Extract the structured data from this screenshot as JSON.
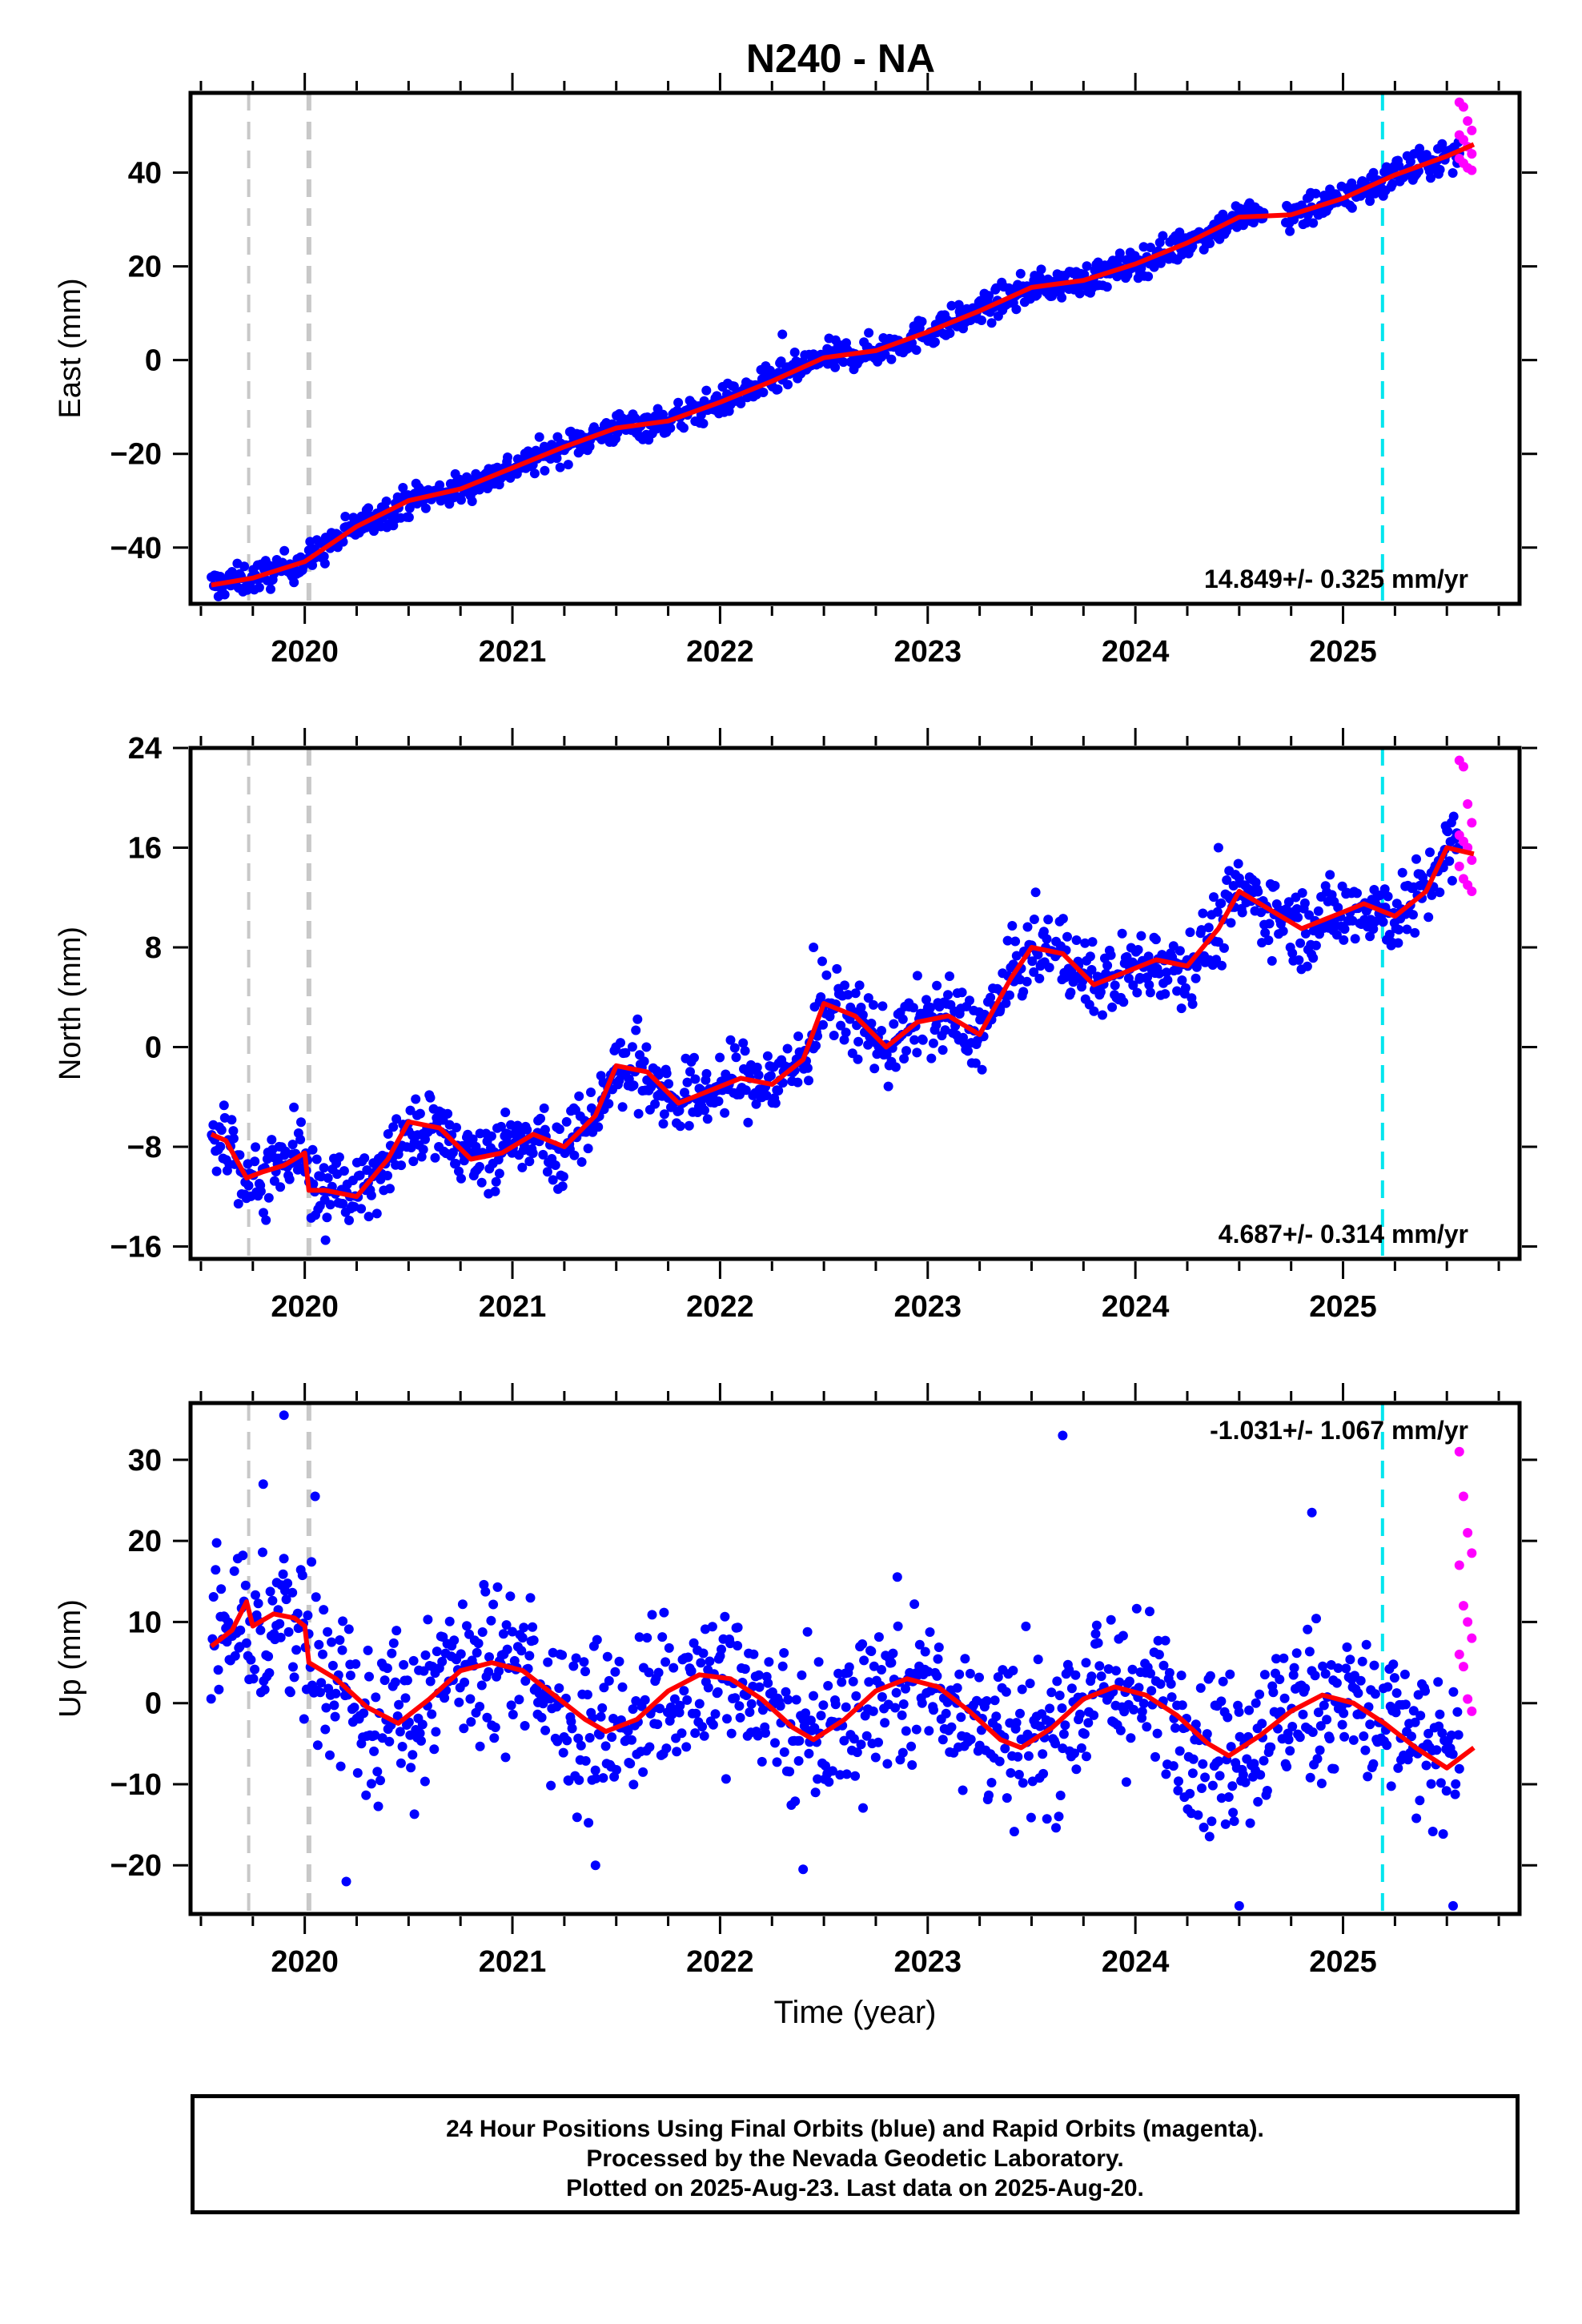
{
  "title": "N240 - NA",
  "colors": {
    "final_points": "#0000ff",
    "rapid_points": "#ff00ff",
    "model_line": "#ff0000",
    "equipment_change": "#c8c8c8",
    "event_line": "#00e5ee"
  },
  "chart_data": [
    {
      "type": "scatter",
      "ylabel": "East (mm)",
      "xlim": [
        2019.45,
        2025.85
      ],
      "ylim": [
        -52,
        57
      ],
      "yticks": [
        -40,
        -20,
        0,
        20,
        40
      ],
      "xticks": [
        2020,
        2021,
        2022,
        2023,
        2024,
        2025
      ],
      "rate_label": "14.849+/- 0.325 mm/yr",
      "rate_position": "bottom-right",
      "vertical_lines": [
        {
          "x": 2019.73,
          "kind": "equipment_change"
        },
        {
          "x": 2020.02,
          "kind": "equipment_change"
        },
        {
          "x": 2025.19,
          "kind": "event_line"
        }
      ],
      "model_curve": {
        "x": [
          2019.55,
          2019.75,
          2020.0,
          2020.25,
          2020.5,
          2020.75,
          2021.0,
          2021.25,
          2021.5,
          2021.75,
          2022.0,
          2022.25,
          2022.5,
          2022.75,
          2023.0,
          2023.25,
          2023.5,
          2023.75,
          2024.0,
          2024.25,
          2024.5,
          2024.75,
          2025.0,
          2025.25,
          2025.5,
          2025.63
        ],
        "y": [
          -48.0,
          -46.5,
          -43.0,
          -35.5,
          -30.0,
          -27.5,
          -23.0,
          -18.5,
          -14.5,
          -13.0,
          -9.0,
          -4.5,
          0.5,
          2.0,
          6.0,
          10.5,
          15.5,
          17.0,
          20.5,
          25.0,
          30.5,
          31.0,
          34.5,
          39.5,
          43.5,
          46.0
        ]
      },
      "final_series": {
        "name": "Final Orbits (blue)",
        "x_start": 2019.55,
        "x_end": 2025.56,
        "scatter_sd_mm": 1.6,
        "outliers": [
          {
            "x": 2024.55,
            "y": 33.5
          },
          {
            "x": 2022.3,
            "y": 5.5
          }
        ]
      },
      "rapid_series": {
        "name": "Rapid Orbits (magenta)",
        "x_start": 2025.56,
        "x_end": 2025.62,
        "points": [
          55.0,
          54.0,
          51.0,
          49.0,
          48.0,
          47.0,
          45.5,
          44.0,
          43.0,
          42.0,
          41.0,
          40.5
        ]
      }
    },
    {
      "type": "scatter",
      "ylabel": "North (mm)",
      "xlim": [
        2019.45,
        2025.85
      ],
      "ylim": [
        -17,
        24
      ],
      "yticks": [
        -16,
        -8,
        0,
        8,
        16,
        24
      ],
      "xticks": [
        2020,
        2021,
        2022,
        2023,
        2024,
        2025
      ],
      "rate_label": "4.687+/- 0.314 mm/yr",
      "rate_position": "bottom-right",
      "vertical_lines": [
        {
          "x": 2019.73,
          "kind": "equipment_change"
        },
        {
          "x": 2020.02,
          "kind": "equipment_change"
        },
        {
          "x": 2025.19,
          "kind": "event_line"
        }
      ],
      "model_curve": {
        "x": [
          2019.55,
          2019.62,
          2019.72,
          2019.8,
          2019.9,
          2020.0,
          2020.02,
          2020.1,
          2020.25,
          2020.4,
          2020.5,
          2020.65,
          2020.8,
          2020.95,
          2021.1,
          2021.25,
          2021.4,
          2021.5,
          2021.65,
          2021.8,
          2021.95,
          2022.1,
          2022.25,
          2022.4,
          2022.5,
          2022.65,
          2022.8,
          2022.95,
          2023.1,
          2023.25,
          2023.4,
          2023.5,
          2023.65,
          2023.8,
          2023.95,
          2024.1,
          2024.25,
          2024.4,
          2024.5,
          2024.65,
          2024.8,
          2024.95,
          2025.1,
          2025.25,
          2025.4,
          2025.5,
          2025.63
        ],
        "y": [
          -7.0,
          -7.5,
          -10.5,
          -10.0,
          -9.5,
          -8.5,
          -11.5,
          -11.5,
          -12.0,
          -9.0,
          -6.0,
          -6.5,
          -9.0,
          -8.5,
          -7.0,
          -8.0,
          -5.5,
          -1.5,
          -2.0,
          -4.5,
          -3.5,
          -2.5,
          -3.0,
          -1.0,
          3.5,
          2.5,
          0.0,
          2.0,
          2.5,
          1.0,
          5.5,
          8.0,
          7.5,
          5.0,
          6.0,
          7.0,
          6.5,
          9.5,
          12.5,
          11.0,
          9.5,
          10.5,
          11.5,
          10.5,
          12.5,
          16.0,
          15.5
        ]
      },
      "final_series": {
        "name": "Final Orbits (blue)",
        "x_start": 2019.55,
        "x_end": 2025.56,
        "scatter_sd_mm": 1.5,
        "outliers": [
          {
            "x": 2020.1,
            "y": -15.5
          },
          {
            "x": 2024.4,
            "y": 16.0
          },
          {
            "x": 2022.45,
            "y": 8.0
          }
        ]
      },
      "rapid_series": {
        "name": "Rapid Orbits (magenta)",
        "x_start": 2025.56,
        "x_end": 2025.62,
        "points": [
          23.0,
          22.5,
          19.5,
          18.0,
          17.0,
          16.5,
          16.0,
          15.0,
          14.5,
          13.5,
          13.0,
          12.5
        ]
      }
    },
    {
      "type": "scatter",
      "ylabel": "Up (mm)",
      "xlabel": "Time (year)",
      "xlim": [
        2019.45,
        2025.85
      ],
      "ylim": [
        -26,
        37
      ],
      "yticks": [
        -20,
        -10,
        0,
        10,
        20,
        30
      ],
      "xticks": [
        2020,
        2021,
        2022,
        2023,
        2024,
        2025
      ],
      "rate_label": "-1.031+/- 1.067 mm/yr",
      "rate_position": "top-right",
      "vertical_lines": [
        {
          "x": 2019.73,
          "kind": "equipment_change"
        },
        {
          "x": 2020.02,
          "kind": "equipment_change"
        },
        {
          "x": 2025.19,
          "kind": "event_line"
        }
      ],
      "model_curve": {
        "x": [
          2019.55,
          2019.65,
          2019.72,
          2019.75,
          2019.85,
          2019.95,
          2020.0,
          2020.02,
          2020.15,
          2020.3,
          2020.45,
          2020.6,
          2020.75,
          2020.9,
          2021.05,
          2021.2,
          2021.35,
          2021.45,
          2021.6,
          2021.75,
          2021.9,
          2022.05,
          2022.2,
          2022.35,
          2022.45,
          2022.6,
          2022.75,
          2022.9,
          2023.05,
          2023.2,
          2023.35,
          2023.45,
          2023.6,
          2023.75,
          2023.9,
          2024.05,
          2024.2,
          2024.35,
          2024.45,
          2024.6,
          2024.75,
          2024.9,
          2025.05,
          2025.2,
          2025.35,
          2025.5,
          2025.63
        ],
        "y": [
          7.0,
          9.0,
          12.5,
          9.5,
          11.0,
          10.5,
          9.5,
          5.0,
          3.0,
          -0.5,
          -2.5,
          0.5,
          4.0,
          5.0,
          4.0,
          1.0,
          -2.0,
          -3.5,
          -2.0,
          1.5,
          3.5,
          3.0,
          0.5,
          -3.0,
          -4.5,
          -2.0,
          1.5,
          3.0,
          2.0,
          -1.0,
          -4.5,
          -5.5,
          -3.0,
          0.5,
          2.0,
          1.0,
          -1.5,
          -5.0,
          -6.5,
          -4.0,
          -1.0,
          1.0,
          0.0,
          -2.5,
          -5.5,
          -8.0,
          -5.5
        ]
      },
      "final_series": {
        "name": "Final Orbits (blue)",
        "x_start": 2019.55,
        "x_end": 2025.56,
        "scatter_sd_mm": 5.0,
        "outliers": [
          {
            "x": 2019.9,
            "y": 35.5
          },
          {
            "x": 2023.65,
            "y": 33.0
          },
          {
            "x": 2019.8,
            "y": 27.0
          },
          {
            "x": 2020.05,
            "y": 25.5
          },
          {
            "x": 2024.85,
            "y": 23.5
          },
          {
            "x": 2020.2,
            "y": -22.0
          },
          {
            "x": 2024.5,
            "y": -25.0
          },
          {
            "x": 2025.53,
            "y": -25.0
          },
          {
            "x": 2021.4,
            "y": -20.0
          },
          {
            "x": 2022.4,
            "y": -20.5
          }
        ]
      },
      "rapid_series": {
        "name": "Rapid Orbits (magenta)",
        "x_start": 2025.56,
        "x_end": 2025.62,
        "points": [
          31.0,
          25.5,
          21.0,
          18.5,
          17.0,
          12.0,
          10.0,
          8.0,
          6.0,
          4.5,
          0.5,
          -1.0
        ]
      }
    }
  ],
  "footer": {
    "line1": "24 Hour Positions Using Final Orbits (blue) and Rapid Orbits (magenta).",
    "line2": "Processed by the Nevada Geodetic Laboratory.",
    "line3": "Plotted on 2025-Aug-23. Last data on 2025-Aug-20."
  }
}
